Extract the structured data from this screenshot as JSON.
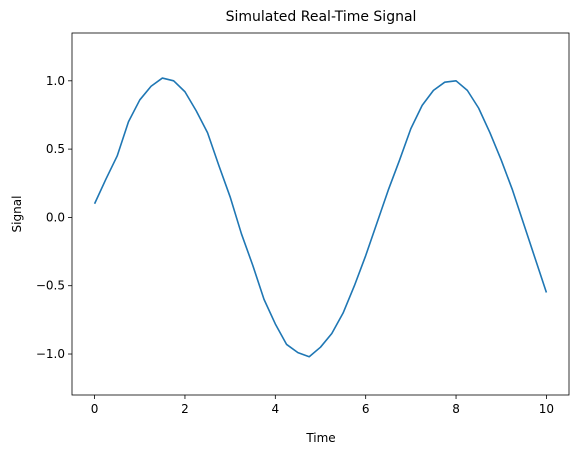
{
  "chart_data": {
    "type": "line",
    "title": "Simulated Real-Time Signal",
    "xlabel": "Time",
    "ylabel": "Signal",
    "xlim": [
      -0.5,
      10.5
    ],
    "ylim": [
      -1.3,
      1.35
    ],
    "xticks": [
      0,
      2,
      4,
      6,
      8,
      10
    ],
    "xtick_labels": [
      "0",
      "2",
      "4",
      "6",
      "8",
      "10"
    ],
    "yticks": [
      -1.0,
      -0.5,
      0.0,
      0.5,
      1.0
    ],
    "ytick_labels": [
      "−1.0",
      "−0.5",
      "0.0",
      "0.5",
      "1.0"
    ],
    "grid": false,
    "series": [
      {
        "color": "#1f77b4",
        "x": [
          0.0,
          0.25,
          0.5,
          0.75,
          1.0,
          1.25,
          1.5,
          1.75,
          2.0,
          2.25,
          2.5,
          2.75,
          3.0,
          3.25,
          3.5,
          3.75,
          4.0,
          4.25,
          4.5,
          4.75,
          5.0,
          5.25,
          5.5,
          5.75,
          6.0,
          6.25,
          6.5,
          6.75,
          7.0,
          7.25,
          7.5,
          7.75,
          8.0,
          8.25,
          8.5,
          8.75,
          9.0,
          9.25,
          9.5,
          9.75,
          10.0
        ],
        "y": [
          0.1,
          0.28,
          0.45,
          0.7,
          0.86,
          0.96,
          1.02,
          1.0,
          0.92,
          0.78,
          0.62,
          0.38,
          0.15,
          -0.12,
          -0.35,
          -0.6,
          -0.78,
          -0.93,
          -0.99,
          -1.02,
          -0.95,
          -0.85,
          -0.7,
          -0.5,
          -0.28,
          -0.04,
          0.2,
          0.42,
          0.65,
          0.82,
          0.93,
          0.99,
          1.0,
          0.93,
          0.8,
          0.62,
          0.42,
          0.2,
          -0.05,
          -0.3,
          -0.55
        ]
      }
    ]
  }
}
